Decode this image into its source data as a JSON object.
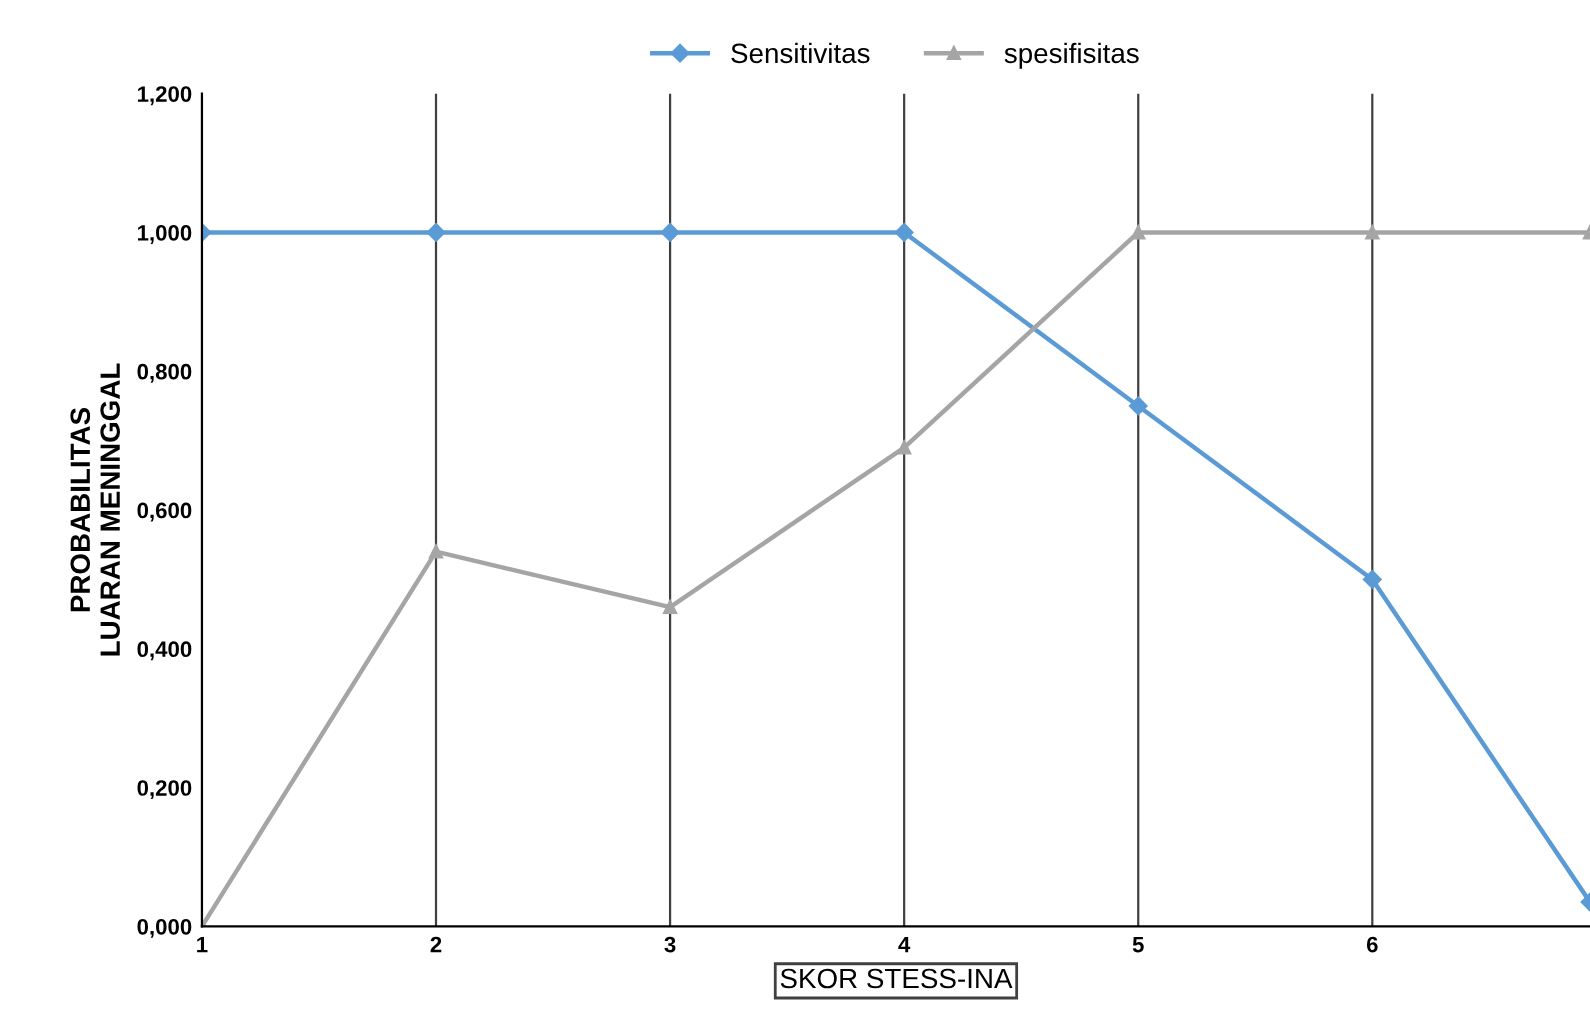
{
  "chart_data": {
    "type": "line",
    "xlabel": "SKOR STESS-INA",
    "ylabel": "PROBABILITAS\nLUARAN MENINGGAL",
    "x": [
      1,
      2,
      3,
      4,
      5,
      6,
      6.93
    ],
    "series": [
      {
        "name": "Sensitivitas",
        "color": "#5b9bd5",
        "marker": "diamond",
        "values": [
          1.0,
          1.0,
          1.0,
          1.0,
          0.75,
          0.5,
          0.035
        ]
      },
      {
        "name": "spesifisitas",
        "color": "#a5a5a5",
        "marker": "triangle",
        "values": [
          0.0,
          0.54,
          0.46,
          0.69,
          1.0,
          1.0,
          1.0
        ]
      }
    ],
    "xlim": [
      1,
      6.93
    ],
    "xticks": [
      1,
      2,
      3,
      4,
      5,
      6
    ],
    "ylim": [
      0,
      1.2
    ],
    "yticks": [
      {
        "value": 0,
        "label": "0,000"
      },
      {
        "value": 0.2,
        "label": "0,200"
      },
      {
        "value": 0.4,
        "label": "0,400"
      },
      {
        "value": 0.6,
        "label": "0,600"
      },
      {
        "value": 0.8,
        "label": "0,800"
      },
      {
        "value": 1.0,
        "label": "1,000"
      },
      {
        "value": 1.2,
        "label": "1,200"
      }
    ],
    "grid": "x",
    "legend": "top",
    "line_style": "solid"
  }
}
